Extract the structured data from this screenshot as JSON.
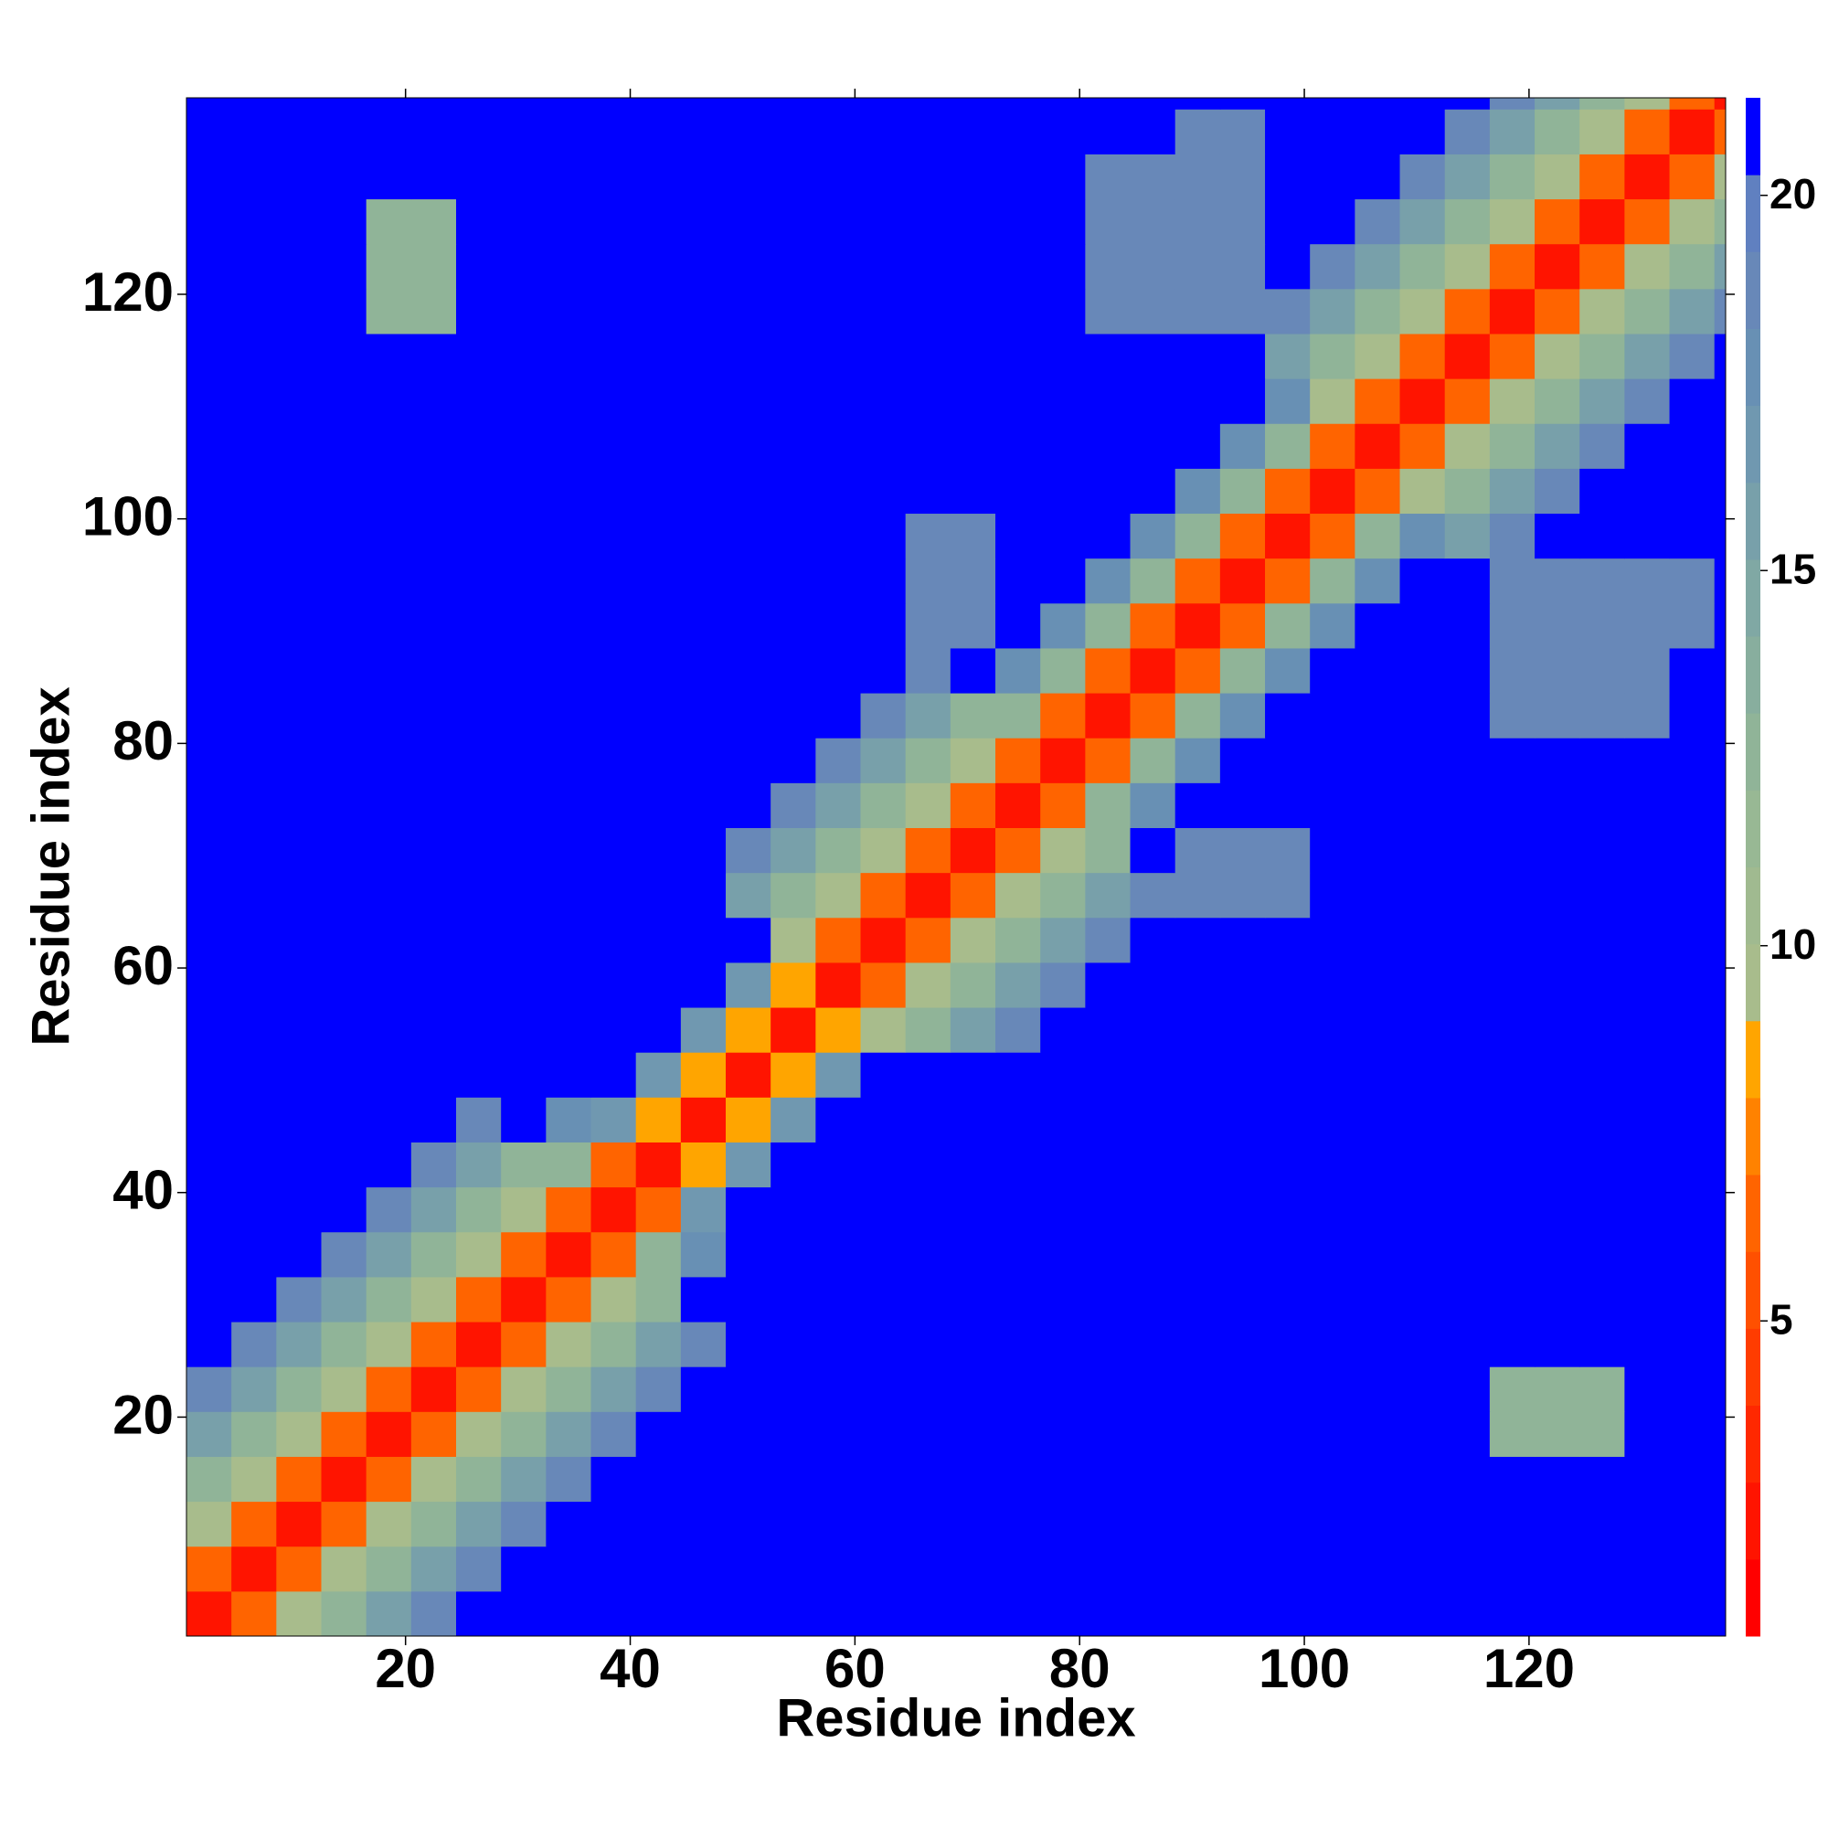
{
  "chart_data": {
    "type": "heatmap",
    "xlabel": "Residue index",
    "ylabel": "Residue index",
    "xlim": [
      0.5,
      137.5
    ],
    "ylim": [
      0.5,
      137.5
    ],
    "xticks": [
      20,
      40,
      60,
      80,
      100,
      120
    ],
    "yticks": [
      20,
      40,
      60,
      80,
      100,
      120
    ],
    "zlim": [
      0.8,
      21.3
    ],
    "colorbar_ticks": [
      5,
      10,
      15,
      20
    ],
    "colors": [
      "#ff0000",
      "#ff1400",
      "#ff2800",
      "#ff3c00",
      "#ff5000",
      "#ff6400",
      "#ff8200",
      "#ffa500",
      "#a8bc8c",
      "#a0ba90",
      "#98b894",
      "#90b498",
      "#88ae9e",
      "#80a8a4",
      "#78a0aa",
      "#7098b0",
      "#6890b4",
      "#6888b8",
      "#6080c0",
      "#0000ff"
    ],
    "x": [
      2.5,
      6.5,
      10.5,
      14.5,
      18.5,
      22.5,
      26.5,
      30.5,
      34.5,
      38.5,
      42.5,
      46.5,
      50.5,
      54.5,
      58.5,
      62.5,
      66.5,
      70.5,
      74.5,
      78.5,
      82.5,
      86.5,
      90.5,
      94.5,
      98.5,
      102.5,
      106.5,
      110.5,
      114.5,
      118.5,
      122.5,
      126.5,
      130.5,
      134.5,
      138.5
    ],
    "y": [
      2.5,
      6.5,
      10.5,
      14.5,
      18.5,
      22.5,
      26.5,
      30.5,
      34.5,
      38.5,
      42.5,
      46.5,
      50.5,
      54.5,
      58.5,
      62.5,
      66.5,
      70.5,
      74.5,
      78.5,
      82.5,
      86.5,
      90.5,
      94.5,
      98.5,
      102.5,
      106.5,
      110.5,
      114.5,
      118.5,
      122.5,
      126.5,
      130.5,
      134.5,
      138.5
    ],
    "z": [
      [
        2,
        6,
        10,
        13,
        16,
        19,
        21,
        21,
        21,
        21,
        21,
        21,
        21,
        21,
        21,
        21,
        21,
        21,
        21,
        21,
        21,
        21,
        21,
        21,
        21,
        21,
        21,
        21,
        21,
        21,
        21,
        21,
        21,
        21,
        21
      ],
      [
        6,
        2,
        6,
        10,
        13,
        16,
        19,
        21,
        21,
        21,
        21,
        21,
        21,
        21,
        21,
        21,
        21,
        21,
        21,
        21,
        21,
        21,
        21,
        21,
        21,
        21,
        21,
        21,
        21,
        21,
        21,
        21,
        21,
        21,
        21
      ],
      [
        10,
        6,
        2,
        6,
        10,
        13,
        16,
        19,
        21,
        21,
        21,
        21,
        21,
        21,
        21,
        21,
        21,
        21,
        21,
        21,
        21,
        21,
        21,
        21,
        21,
        21,
        21,
        21,
        21,
        21,
        21,
        21,
        21,
        21,
        21
      ],
      [
        13,
        10,
        6,
        2,
        6,
        10,
        13,
        16,
        19,
        21,
        21,
        21,
        21,
        21,
        21,
        21,
        21,
        21,
        21,
        21,
        21,
        21,
        21,
        21,
        21,
        21,
        21,
        21,
        21,
        21,
        21,
        21,
        21,
        21,
        21
      ],
      [
        16,
        13,
        10,
        6,
        2,
        6,
        10,
        13,
        16,
        19,
        21,
        21,
        21,
        21,
        21,
        21,
        21,
        21,
        21,
        21,
        21,
        21,
        21,
        21,
        21,
        21,
        21,
        21,
        21,
        13,
        13,
        13,
        21,
        21,
        21
      ],
      [
        19,
        16,
        13,
        10,
        6,
        2,
        6,
        10,
        13,
        16,
        19,
        21,
        21,
        21,
        21,
        21,
        21,
        21,
        21,
        21,
        21,
        21,
        21,
        21,
        21,
        21,
        21,
        21,
        21,
        13,
        13,
        13,
        21,
        21,
        21
      ],
      [
        21,
        19,
        16,
        13,
        10,
        6,
        2,
        6,
        10,
        13,
        16,
        19,
        21,
        21,
        21,
        21,
        21,
        21,
        21,
        21,
        21,
        21,
        21,
        21,
        21,
        21,
        21,
        21,
        21,
        21,
        21,
        21,
        21,
        21,
        21
      ],
      [
        21,
        21,
        19,
        16,
        13,
        10,
        6,
        2,
        6,
        10,
        13,
        21,
        21,
        21,
        21,
        21,
        21,
        21,
        21,
        21,
        21,
        21,
        21,
        21,
        21,
        21,
        21,
        21,
        21,
        21,
        21,
        21,
        21,
        21,
        21
      ],
      [
        21,
        21,
        21,
        19,
        16,
        13,
        10,
        6,
        2,
        6,
        13,
        18,
        21,
        21,
        21,
        21,
        21,
        21,
        21,
        21,
        21,
        21,
        21,
        21,
        21,
        21,
        21,
        21,
        21,
        21,
        21,
        21,
        21,
        21,
        21
      ],
      [
        21,
        21,
        21,
        21,
        19,
        16,
        13,
        10,
        6,
        2,
        6,
        17,
        21,
        21,
        21,
        21,
        21,
        21,
        21,
        21,
        21,
        21,
        21,
        21,
        21,
        21,
        21,
        21,
        21,
        21,
        21,
        21,
        21,
        21,
        21
      ],
      [
        21,
        21,
        21,
        21,
        21,
        19,
        16,
        13,
        13,
        6,
        2,
        8,
        17,
        21,
        21,
        21,
        21,
        21,
        21,
        21,
        21,
        21,
        21,
        21,
        21,
        21,
        21,
        21,
        21,
        21,
        21,
        21,
        21,
        21,
        21
      ],
      [
        21,
        21,
        21,
        21,
        21,
        21,
        19,
        21,
        18,
        17,
        8,
        2,
        8,
        17,
        21,
        21,
        21,
        21,
        21,
        21,
        21,
        21,
        21,
        21,
        21,
        21,
        21,
        21,
        21,
        21,
        21,
        21,
        21,
        21,
        21
      ],
      [
        21,
        21,
        21,
        21,
        21,
        21,
        21,
        21,
        21,
        21,
        17,
        8,
        2,
        8,
        17,
        21,
        21,
        21,
        21,
        21,
        21,
        21,
        21,
        21,
        21,
        21,
        21,
        21,
        21,
        21,
        21,
        21,
        21,
        21,
        21
      ],
      [
        21,
        21,
        21,
        21,
        21,
        21,
        21,
        21,
        21,
        21,
        21,
        17,
        8,
        2,
        8,
        10,
        13,
        16,
        19,
        21,
        21,
        21,
        21,
        21,
        21,
        21,
        21,
        21,
        21,
        21,
        21,
        21,
        21,
        21,
        21
      ],
      [
        21,
        21,
        21,
        21,
        21,
        21,
        21,
        21,
        21,
        21,
        21,
        21,
        17,
        8,
        2,
        6,
        10,
        13,
        16,
        19,
        21,
        21,
        21,
        21,
        21,
        21,
        21,
        21,
        21,
        21,
        21,
        21,
        21,
        21,
        21
      ],
      [
        21,
        21,
        21,
        21,
        21,
        21,
        21,
        21,
        21,
        21,
        21,
        21,
        21,
        10,
        6,
        2,
        6,
        10,
        13,
        16,
        19,
        21,
        21,
        21,
        21,
        21,
        21,
        21,
        21,
        21,
        21,
        21,
        21,
        21,
        21
      ],
      [
        21,
        21,
        21,
        21,
        21,
        21,
        21,
        21,
        21,
        21,
        21,
        21,
        16,
        13,
        10,
        6,
        2,
        6,
        10,
        13,
        16,
        19,
        19,
        19,
        19,
        21,
        21,
        21,
        21,
        21,
        21,
        21,
        21,
        21,
        21
      ],
      [
        21,
        21,
        21,
        21,
        21,
        21,
        21,
        21,
        21,
        21,
        21,
        21,
        19,
        16,
        13,
        10,
        6,
        2,
        6,
        10,
        13,
        21,
        19,
        19,
        19,
        21,
        21,
        21,
        21,
        21,
        21,
        21,
        21,
        21,
        21
      ],
      [
        21,
        21,
        21,
        21,
        21,
        21,
        21,
        21,
        21,
        21,
        21,
        21,
        21,
        19,
        16,
        13,
        10,
        6,
        2,
        6,
        13,
        18,
        21,
        21,
        21,
        21,
        21,
        21,
        21,
        21,
        21,
        21,
        21,
        21,
        21
      ],
      [
        21,
        21,
        21,
        21,
        21,
        21,
        21,
        21,
        21,
        21,
        21,
        21,
        21,
        21,
        19,
        16,
        13,
        10,
        6,
        2,
        6,
        13,
        18,
        21,
        21,
        21,
        21,
        21,
        21,
        21,
        21,
        21,
        21,
        21,
        21
      ],
      [
        21,
        21,
        21,
        21,
        21,
        21,
        21,
        21,
        21,
        21,
        21,
        21,
        21,
        21,
        21,
        19,
        16,
        13,
        13,
        6,
        2,
        6,
        13,
        18,
        21,
        21,
        21,
        21,
        21,
        19,
        19,
        19,
        19,
        21,
        21
      ],
      [
        21,
        21,
        21,
        21,
        21,
        21,
        21,
        21,
        21,
        21,
        21,
        21,
        21,
        21,
        21,
        21,
        19,
        21,
        18,
        13,
        6,
        2,
        6,
        13,
        18,
        21,
        21,
        21,
        21,
        19,
        19,
        19,
        19,
        21,
        21
      ],
      [
        21,
        21,
        21,
        21,
        21,
        21,
        21,
        21,
        21,
        21,
        21,
        21,
        21,
        21,
        21,
        21,
        19,
        19,
        21,
        18,
        13,
        6,
        2,
        6,
        13,
        18,
        21,
        21,
        21,
        19,
        19,
        19,
        19,
        19,
        21
      ],
      [
        21,
        21,
        21,
        21,
        21,
        21,
        21,
        21,
        21,
        21,
        21,
        21,
        21,
        21,
        21,
        21,
        19,
        19,
        21,
        21,
        18,
        13,
        6,
        2,
        6,
        13,
        18,
        21,
        21,
        19,
        19,
        19,
        19,
        19,
        21
      ],
      [
        21,
        21,
        21,
        21,
        21,
        21,
        21,
        21,
        21,
        21,
        21,
        21,
        21,
        21,
        21,
        21,
        19,
        19,
        21,
        21,
        21,
        18,
        13,
        6,
        2,
        6,
        13,
        18,
        16,
        19,
        21,
        21,
        21,
        21,
        21
      ],
      [
        21,
        21,
        21,
        21,
        21,
        21,
        21,
        21,
        21,
        21,
        21,
        21,
        21,
        21,
        21,
        21,
        21,
        21,
        21,
        21,
        21,
        21,
        18,
        13,
        6,
        2,
        6,
        10,
        13,
        16,
        19,
        21,
        21,
        21,
        21
      ],
      [
        21,
        21,
        21,
        21,
        21,
        21,
        21,
        21,
        21,
        21,
        21,
        21,
        21,
        21,
        21,
        21,
        21,
        21,
        21,
        21,
        21,
        21,
        21,
        18,
        13,
        6,
        2,
        6,
        10,
        13,
        16,
        19,
        21,
        21,
        21
      ],
      [
        21,
        21,
        21,
        21,
        21,
        21,
        21,
        21,
        21,
        21,
        21,
        21,
        21,
        21,
        21,
        21,
        21,
        21,
        21,
        21,
        21,
        21,
        21,
        21,
        18,
        10,
        6,
        2,
        6,
        10,
        13,
        16,
        19,
        21,
        21
      ],
      [
        21,
        21,
        21,
        21,
        21,
        21,
        21,
        21,
        21,
        21,
        21,
        21,
        21,
        21,
        21,
        21,
        21,
        21,
        21,
        21,
        21,
        21,
        21,
        21,
        16,
        13,
        10,
        6,
        2,
        6,
        10,
        13,
        16,
        19,
        21
      ],
      [
        21,
        21,
        21,
        21,
        13,
        13,
        21,
        21,
        21,
        21,
        21,
        21,
        21,
        21,
        21,
        21,
        21,
        21,
        21,
        21,
        19,
        19,
        19,
        19,
        19,
        16,
        13,
        10,
        6,
        2,
        6,
        10,
        13,
        16,
        19
      ],
      [
        21,
        21,
        21,
        21,
        13,
        13,
        21,
        21,
        21,
        21,
        21,
        21,
        21,
        21,
        21,
        21,
        21,
        21,
        21,
        21,
        19,
        19,
        19,
        19,
        21,
        19,
        16,
        13,
        10,
        6,
        2,
        6,
        10,
        13,
        16
      ],
      [
        21,
        21,
        21,
        21,
        13,
        13,
        21,
        21,
        21,
        21,
        21,
        21,
        21,
        21,
        21,
        21,
        21,
        21,
        21,
        21,
        19,
        19,
        19,
        19,
        21,
        21,
        19,
        16,
        13,
        10,
        6,
        2,
        6,
        10,
        13
      ],
      [
        21,
        21,
        21,
        21,
        21,
        21,
        21,
        21,
        21,
        21,
        21,
        21,
        21,
        21,
        21,
        21,
        21,
        21,
        21,
        21,
        19,
        19,
        19,
        19,
        21,
        21,
        21,
        19,
        16,
        13,
        10,
        6,
        2,
        6,
        10
      ],
      [
        21,
        21,
        21,
        21,
        21,
        21,
        21,
        21,
        21,
        21,
        21,
        21,
        21,
        21,
        21,
        21,
        21,
        21,
        21,
        21,
        21,
        21,
        19,
        19,
        21,
        21,
        21,
        21,
        19,
        16,
        13,
        10,
        6,
        2,
        6
      ],
      [
        21,
        21,
        21,
        21,
        21,
        21,
        21,
        21,
        21,
        21,
        21,
        21,
        21,
        21,
        21,
        21,
        21,
        21,
        21,
        21,
        21,
        21,
        21,
        21,
        21,
        21,
        21,
        21,
        21,
        19,
        16,
        13,
        10,
        6,
        2
      ]
    ]
  }
}
